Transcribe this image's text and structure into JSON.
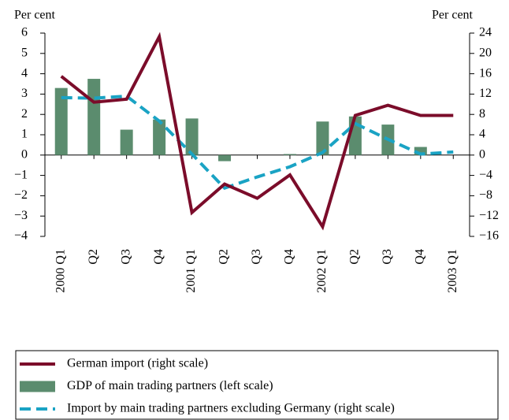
{
  "chart_data": {
    "type": "bar_line",
    "y_label": "Per cent",
    "y2_label": "Per cent",
    "categories": [
      "2000 Q1",
      "Q2",
      "Q3",
      "Q4",
      "2001 Q1",
      "Q2",
      "Q3",
      "Q4",
      "2002 Q1",
      "Q2",
      "Q3",
      "Q4",
      "2003 Q1"
    ],
    "series": [
      {
        "name": "German import (right scale)",
        "type": "line",
        "axis": "y2",
        "color": "#7b0c2a",
        "style": "solid",
        "values": [
          15.5,
          10.4,
          11,
          23.3,
          -11.3,
          -5.7,
          -8.5,
          -3.9,
          -14.1,
          7.8,
          9.8,
          7.8,
          7.8
        ]
      },
      {
        "name": "GDP of main trading partners (left scale)",
        "type": "bar",
        "axis": "y",
        "color": "#5b8c6e",
        "values": [
          3.3,
          3.75,
          1.25,
          1.75,
          1.8,
          -0.3,
          0,
          0.05,
          1.65,
          1.9,
          1.5,
          0.4,
          null
        ]
      },
      {
        "name": "Import by main trading partners excluding Germany (right scale)",
        "type": "line",
        "axis": "y2",
        "color": "#1aa3c4",
        "style": "dashed",
        "values": [
          11.3,
          11.2,
          11.6,
          6.7,
          0.2,
          -6.5,
          -4.3,
          -2.3,
          0.5,
          6.2,
          3.1,
          0.2,
          0.6
        ]
      }
    ],
    "ylim": [
      -4,
      6
    ],
    "yticks": [
      {
        "value": -4,
        "label": "−4"
      },
      {
        "value": -3,
        "label": "−3"
      },
      {
        "value": -2,
        "label": "−2"
      },
      {
        "value": -1,
        "label": "−1"
      },
      0,
      1,
      2,
      3,
      4,
      5,
      6
    ],
    "y2lim": [
      -16,
      24
    ],
    "y2ticks": [
      {
        "value": -16,
        "label": "−16"
      },
      {
        "value": -12,
        "label": "−12"
      },
      {
        "value": -8,
        "label": "−8"
      },
      {
        "value": -4,
        "label": "−4"
      },
      0,
      4,
      8,
      12,
      16,
      20,
      24
    ],
    "legend": "bottom"
  }
}
